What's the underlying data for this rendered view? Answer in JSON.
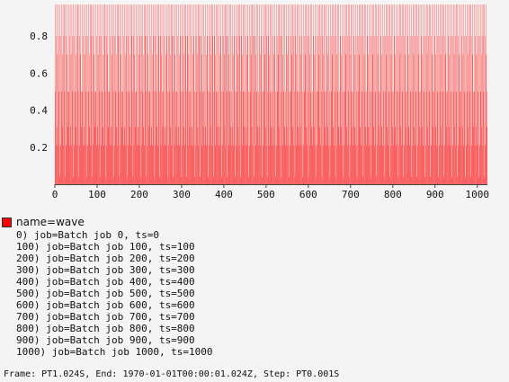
{
  "chart_data": {
    "type": "bar",
    "title": "",
    "xlabel": "",
    "ylabel": "",
    "xlim": [
      0,
      1024
    ],
    "ylim": [
      0,
      0.97
    ],
    "x_ticks": [
      "0",
      "100",
      "200",
      "300",
      "400",
      "500",
      "600",
      "700",
      "800",
      "900",
      "1000"
    ],
    "y_ticks": [
      "0.2",
      "0.4",
      "0.6",
      "0.8"
    ],
    "grid": false,
    "legend_position": "bottom-left",
    "series": [
      {
        "name": "name=wave",
        "color": "#ff0000",
        "sample_count": 1024,
        "value_levels": [
          0.04,
          0.21,
          0.31,
          0.5,
          0.7,
          0.8,
          0.97
        ],
        "pattern": [
          0.97,
          0.5,
          0.21,
          0.8,
          0.97,
          0.31,
          0.7,
          0.21,
          0.97,
          0.8,
          0.5,
          0.04,
          0.97,
          0.21,
          0.8,
          0.5,
          0.97,
          0.7,
          0.31,
          0.97,
          0.21,
          0.8,
          0.97,
          0.5,
          0.04,
          0.97,
          0.8,
          0.21,
          0.7,
          0.97,
          0.5,
          0.31
        ]
      }
    ]
  },
  "legend": {
    "name": "name=wave",
    "items": [
      "0) job=Batch job 0, ts=0",
      "100) job=Batch job 100, ts=100",
      "200) job=Batch job 200, ts=200",
      "300) job=Batch job 300, ts=300",
      "400) job=Batch job 400, ts=400",
      "500) job=Batch job 500, ts=500",
      "600) job=Batch job 600, ts=600",
      "700) job=Batch job 700, ts=700",
      "800) job=Batch job 800, ts=800",
      "900) job=Batch job 900, ts=900",
      "1000) job=Batch job 1000, ts=1000"
    ]
  },
  "footer": {
    "text": "Frame: PT1.024S, End: 1970-01-01T00:00:01.024Z, Step: PT0.001S"
  }
}
